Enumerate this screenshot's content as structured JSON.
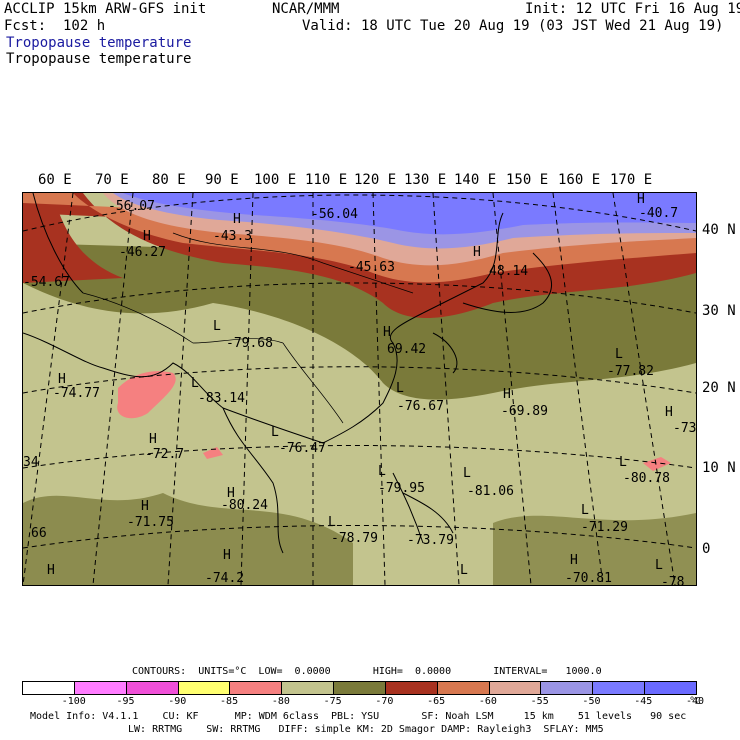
{
  "header": {
    "model": "ACCLIP 15km ARW-GFS init",
    "org": "NCAR/MMM",
    "init": "Init: 12 UTC Fri 16 Aug 19",
    "fcst": "Fcst:  102 h",
    "valid": "Valid: 18 UTC Tue 20 Aug 19 (03 JST Wed 21 Aug 19)",
    "field1": "Tropopause temperature",
    "field2": "Tropopause temperature"
  },
  "map": {
    "lon_labels": [
      "60 E",
      "70 E",
      "80 E",
      "90 E",
      "100 E",
      "110 E",
      "120 E",
      "130 E",
      "140 E",
      "150 E",
      "160 E",
      "170 E"
    ],
    "lat_labels": [
      "40 N",
      "30 N",
      "20 N",
      "10 N",
      "0"
    ],
    "highs_lows": [
      {
        "t": "-56.07"
      },
      {
        "t": "H"
      },
      {
        "t": "-46.27"
      },
      {
        "t": "-54.67"
      },
      {
        "t": "H"
      },
      {
        "t": "-43.3"
      },
      {
        "t": "-56.04"
      },
      {
        "t": "-45.63"
      },
      {
        "t": "H"
      },
      {
        "t": "48.14"
      },
      {
        "t": "H"
      },
      {
        "t": "-40.7"
      },
      {
        "t": "L"
      },
      {
        "t": "-79.68"
      },
      {
        "t": "H"
      },
      {
        "t": "69.42"
      },
      {
        "t": "L"
      },
      {
        "t": "-77.82"
      },
      {
        "t": "H"
      },
      {
        "t": "-74.77"
      },
      {
        "t": "L"
      },
      {
        "t": "-83.14"
      },
      {
        "t": "L"
      },
      {
        "t": "-76.67"
      },
      {
        "t": "H"
      },
      {
        "t": "-69.89"
      },
      {
        "t": "H"
      },
      {
        "t": "-73"
      },
      {
        "t": "H"
      },
      {
        "t": "-72.7"
      },
      {
        "t": "L"
      },
      {
        "t": "-76.47"
      },
      {
        "t": "L"
      },
      {
        "t": "-80.78"
      },
      {
        "t": "34"
      },
      {
        "t": "L"
      },
      {
        "t": "-79.95"
      },
      {
        "t": "L"
      },
      {
        "t": "-81.06"
      },
      {
        "t": "H"
      },
      {
        "t": "-80.24"
      },
      {
        "t": "H"
      },
      {
        "t": "-71.75"
      },
      {
        "t": "L"
      },
      {
        "t": "-71.29"
      },
      {
        "t": "66"
      },
      {
        "t": "L"
      },
      {
        "t": "-78.79"
      },
      {
        "t": "-73.79"
      },
      {
        "t": "H"
      },
      {
        "t": "-70.81"
      },
      {
        "t": "H"
      },
      {
        "t": "-74.2"
      },
      {
        "t": "L"
      },
      {
        "t": "-78"
      },
      {
        "t": "H"
      },
      {
        "t": "L"
      }
    ]
  },
  "contours": {
    "label": "CONTOURS:  UNITS=°C  LOW=  0.0000       HIGH=  0.0000       INTERVAL=   1000.0"
  },
  "colorbar": {
    "colors": [
      "#ffffff",
      "#ff7cff",
      "#f050d8",
      "#ffff70",
      "#f58080",
      "#c3c48e",
      "#7a7a3a",
      "#a83220",
      "#d77850",
      "#e0a898",
      "#9b95e5",
      "#7a7aff",
      "#6a6aff"
    ],
    "labels": [
      "-100",
      "-95",
      "-90",
      "-85",
      "-80",
      "-75",
      "-70",
      "-65",
      "-60",
      "-55",
      "-50",
      "-45",
      "-40"
    ],
    "unit": "°C"
  },
  "footer": {
    "line1": "Model Info: V4.1.1    CU: KF      MP: WDM 6class  PBL: YSU       SF: Noah LSM     15 km    51 levels   90 sec",
    "line2": "LW: RRTMG    SW: RRTMG   DIFF: simple KM: 2D Smagor DAMP: Rayleigh3  SFLAY: MM5"
  }
}
